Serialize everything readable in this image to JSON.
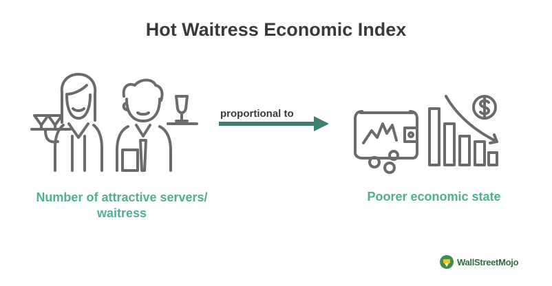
{
  "title": "Hot Waitress Economic Index",
  "arrow_label": "proportional to",
  "left_label": "Number of attractive servers/ waitress",
  "right_label": "Poorer economic state",
  "brand": {
    "name": "WallStreetMojo",
    "icon": "wallstreetmojo-logo-icon"
  },
  "icons": [
    "waitress-icon",
    "waiter-icon",
    "right-arrow-icon",
    "empty-wallet-icon",
    "declining-bar-chart-icon",
    "dollar-coin-icon"
  ],
  "colors": {
    "accent": "#4fae95",
    "arrow": "#3f7f72",
    "icon_stroke": "#6b6b6b",
    "title": "#3a3a3a"
  }
}
